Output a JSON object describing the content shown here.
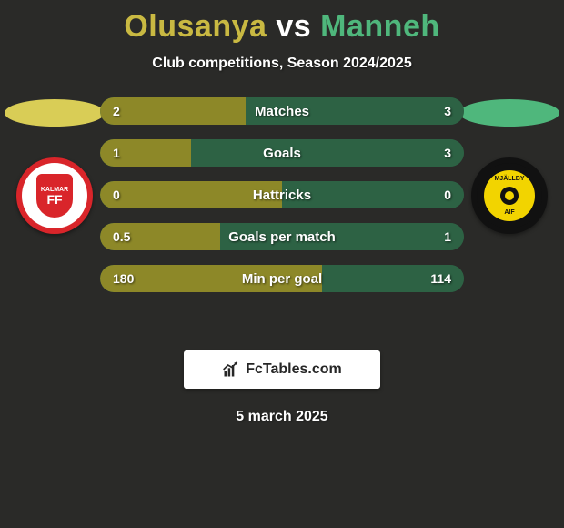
{
  "colors": {
    "background": "#2a2a28",
    "title_left": "#c9b942",
    "title_right": "#4fb77c",
    "bar_left": "#8d8828",
    "bar_right": "#2d6244",
    "silhouette_left": "#d9cd56",
    "silhouette_right": "#4fb77c",
    "crest_left_border": "#d9252a",
    "crest_right_border": "#111111"
  },
  "title": {
    "left": "Olusanya",
    "vs": "vs",
    "right": "Manneh"
  },
  "subtitle": "Club competitions, Season 2024/2025",
  "crests": {
    "left": {
      "line1": "KALMAR",
      "line2": "FF"
    },
    "right": {
      "top": "MJÄLLBY",
      "bottom": "AIF"
    }
  },
  "stats": [
    {
      "label": "Matches",
      "left_val": "2",
      "right_val": "3",
      "left_pct": 40,
      "right_pct": 60
    },
    {
      "label": "Goals",
      "left_val": "1",
      "right_val": "3",
      "left_pct": 25,
      "right_pct": 75
    },
    {
      "label": "Hattricks",
      "left_val": "0",
      "right_val": "0",
      "left_pct": 50,
      "right_pct": 50
    },
    {
      "label": "Goals per match",
      "left_val": "0.5",
      "right_val": "1",
      "left_pct": 33,
      "right_pct": 67
    },
    {
      "label": "Min per goal",
      "left_val": "180",
      "right_val": "114",
      "left_pct": 61,
      "right_pct": 39
    }
  ],
  "branding": "FcTables.com",
  "date": "5 march 2025"
}
